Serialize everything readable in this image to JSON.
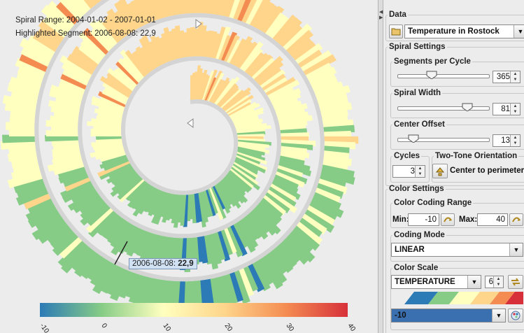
{
  "viz": {
    "range_label": "Spiral Range: 2004-01-02 - 2007-01-01",
    "highlight_label": "Highlighted Segment: 2006-08-08: 22,9",
    "tooltip_date": "2006-08-08:",
    "tooltip_value": "22,9",
    "legend_ticks": [
      "-10",
      "0",
      "10",
      "20",
      "30",
      "40"
    ]
  },
  "panel": {
    "data_section": "Data",
    "dataset": "Temperature in Rostock",
    "spiral_settings": "Spiral Settings",
    "segments_label": "Segments per Cycle",
    "segments_value": "365",
    "segments_fraction": 0.36,
    "width_label": "Spiral Width",
    "width_value": "81",
    "width_fraction": 0.81,
    "offset_label": "Center Offset",
    "offset_value": "13",
    "offset_fraction": 0.13,
    "cycles_label": "Cycles",
    "cycles_value": "3",
    "orientation_label": "Two-Tone Orientation",
    "orientation_value": "Center to perimeter",
    "color_settings": "Color Settings",
    "coding_range_label": "Color Coding Range",
    "min_label": "Min:",
    "min_value": "-10",
    "max_label": "Max:",
    "max_value": "40",
    "coding_mode_label": "Coding Mode",
    "coding_mode_value": "LINEAR",
    "color_scale_label": "Color Scale",
    "color_scale_value": "TEMPERATURE",
    "scale_steps": "6",
    "selected_value": "-10"
  },
  "colors": {
    "scale": [
      "#2c7bb6",
      "#86cc86",
      "#ffffbf",
      "#fed58b",
      "#f48c52",
      "#d7303a"
    ],
    "accent": "#3a6fb0"
  }
}
